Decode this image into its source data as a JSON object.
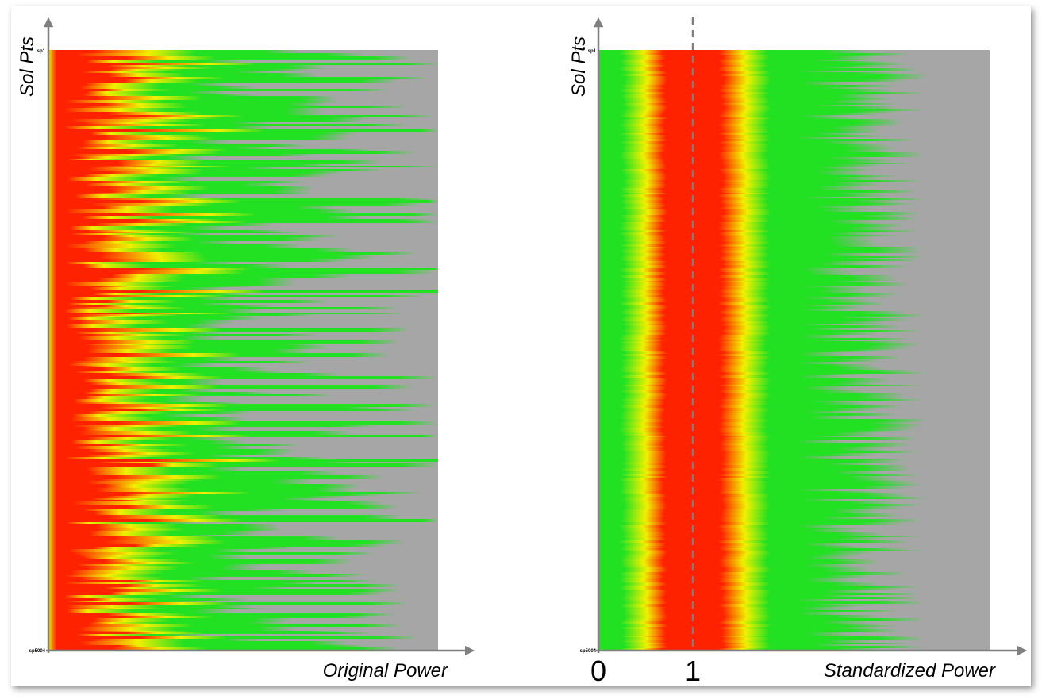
{
  "chart_data": [
    {
      "type": "heatmap",
      "panel": "left",
      "xlabel": "Original Power",
      "ylabel": "Sol Pts",
      "ytick_labels": [
        "sp1",
        "sp5004"
      ],
      "row_count": 5004,
      "colormap": [
        "#a6a6a6",
        "#22e022",
        "#f0f000",
        "#ff2200"
      ],
      "background_color": "#a6a6a6",
      "description_of_values": "each row is a solution point; colour encodes density of power values (grey low, green, yellow, red high) concentrated near zero power"
    },
    {
      "type": "heatmap",
      "panel": "right",
      "xlabel": "Standardized Power",
      "ylabel": "Sol Pts",
      "ytick_labels": [
        "sp1",
        "sp5004"
      ],
      "xticks": [
        0,
        1
      ],
      "xtick_labels": [
        "0",
        "1"
      ],
      "reference_line_x": 1,
      "row_count": 5004,
      "colormap": [
        "#a6a6a6",
        "#22e022",
        "#f0f000",
        "#ff2200"
      ],
      "background_color": "#a6a6a6"
    }
  ],
  "colors": {
    "axis": "#7f7f7f",
    "grey": "#a6a6a6",
    "green": "#22e022",
    "yellow": "#f0f000",
    "red": "#ff2200",
    "dashed_line": "#7f7f7f"
  }
}
